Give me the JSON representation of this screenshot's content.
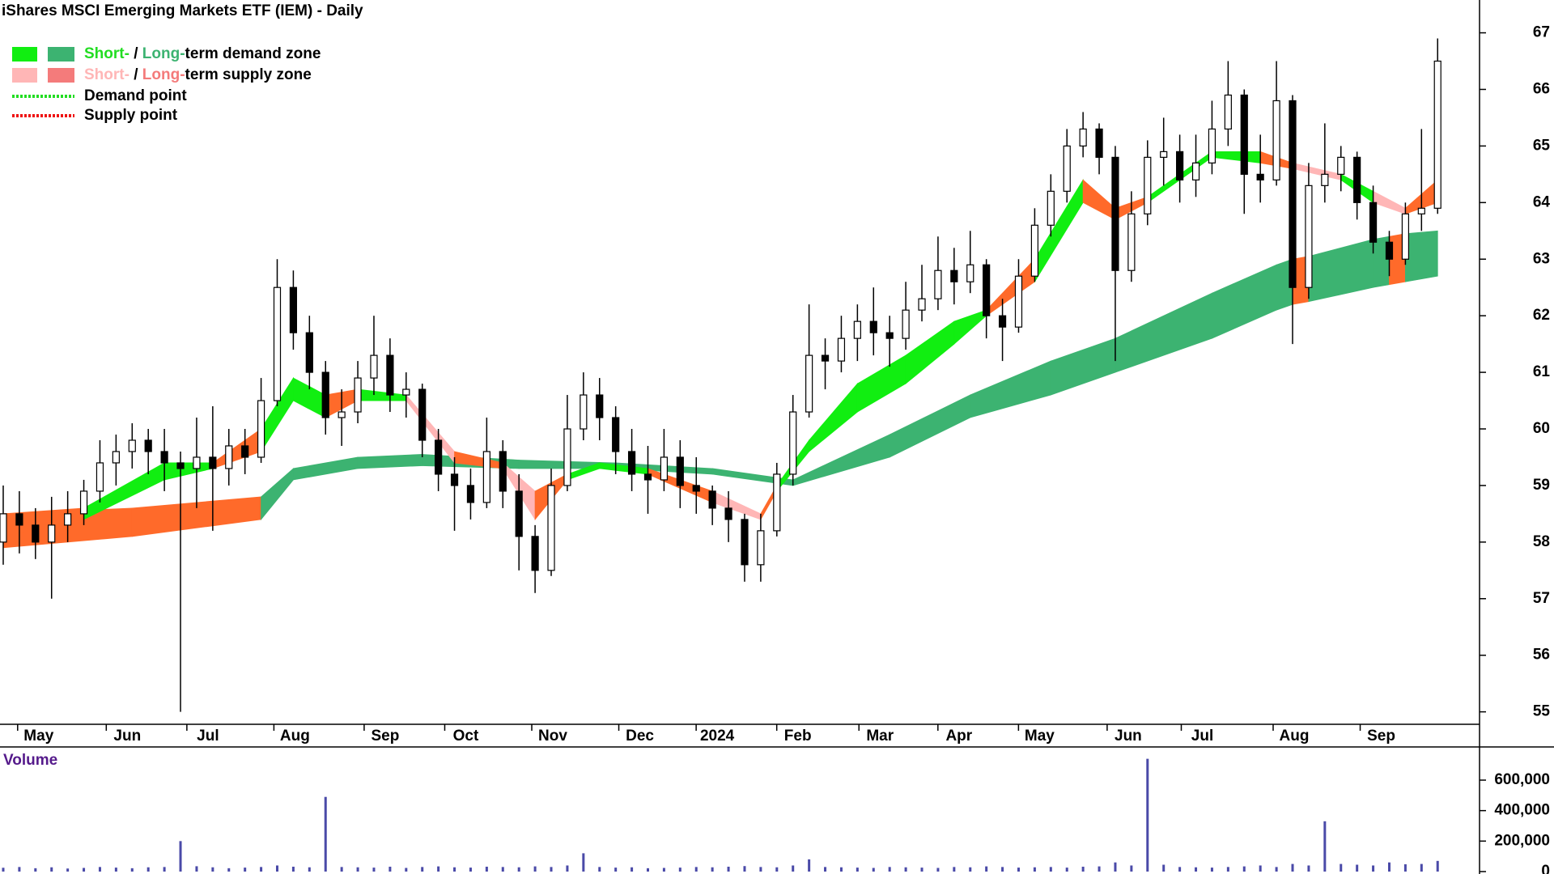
{
  "chart_data": {
    "type": "candlestick",
    "title": "iShares MSCI Emerging Markets ETF (IEM) - Daily",
    "legend": [
      {
        "swatches": [
          "#11ee11",
          "#3cb371"
        ],
        "parts": [
          "Short-",
          " / ",
          "Long-",
          "term demand zone"
        ],
        "part_colors": [
          "#22dd22",
          "#000000",
          "#3cb371",
          "#000000"
        ]
      },
      {
        "swatches": [
          "#ffb6b6",
          "#f47b7b"
        ],
        "parts": [
          "Short-",
          " / ",
          "Long-",
          "term supply zone"
        ],
        "part_colors": [
          "#ffb6b6",
          "#000000",
          "#f47b7b",
          "#000000"
        ]
      },
      {
        "line": "#22dd22",
        "parts": [
          "Demand point"
        ],
        "part_colors": [
          "#000000"
        ]
      },
      {
        "line": "#ee1111",
        "parts": [
          "Supply point"
        ],
        "part_colors": [
          "#000000"
        ]
      }
    ],
    "xlim": [
      -0.2,
      91.6
    ],
    "xticks": [
      {
        "value": 2.2,
        "label": "May"
      },
      {
        "value": 7.7,
        "label": "Jun"
      },
      {
        "value": 12.7,
        "label": "Jul"
      },
      {
        "value": 18.1,
        "label": "Aug"
      },
      {
        "value": 23.7,
        "label": "Sep"
      },
      {
        "value": 28.7,
        "label": "Oct"
      },
      {
        "value": 34.1,
        "label": "Nov"
      },
      {
        "value": 39.5,
        "label": "Dec"
      },
      {
        "value": 44.3,
        "label": "2024"
      },
      {
        "value": 49.3,
        "label": "Feb"
      },
      {
        "value": 54.4,
        "label": "Mar"
      },
      {
        "value": 59.3,
        "label": "Apr"
      },
      {
        "value": 64.3,
        "label": "May"
      },
      {
        "value": 69.8,
        "label": "Jun"
      },
      {
        "value": 74.4,
        "label": "Jul"
      },
      {
        "value": 80.1,
        "label": "Aug"
      },
      {
        "value": 85.5,
        "label": "Sep"
      }
    ],
    "ylim": [
      54.78,
      67.58
    ],
    "yticks": [
      55,
      56,
      57,
      58,
      59,
      60,
      61,
      62,
      63,
      64,
      65,
      66,
      67
    ],
    "candles": [
      [
        58.0,
        59.0,
        57.6,
        58.5
      ],
      [
        58.5,
        58.9,
        57.8,
        58.3
      ],
      [
        58.3,
        58.6,
        57.7,
        58.0
      ],
      [
        58.0,
        58.8,
        57.0,
        58.3
      ],
      [
        58.3,
        58.9,
        58.0,
        58.5
      ],
      [
        58.5,
        59.1,
        58.3,
        58.9
      ],
      [
        58.9,
        59.8,
        58.7,
        59.4
      ],
      [
        59.4,
        59.9,
        59.0,
        59.6
      ],
      [
        59.6,
        60.1,
        59.3,
        59.8
      ],
      [
        59.8,
        60.0,
        59.2,
        59.6
      ],
      [
        59.6,
        60.0,
        58.9,
        59.4
      ],
      [
        59.4,
        59.6,
        55.0,
        59.3
      ],
      [
        59.3,
        60.2,
        58.6,
        59.5
      ],
      [
        59.5,
        60.4,
        58.2,
        59.3
      ],
      [
        59.3,
        60.0,
        59.0,
        59.7
      ],
      [
        59.7,
        60.0,
        59.2,
        59.5
      ],
      [
        59.5,
        60.9,
        59.4,
        60.5
      ],
      [
        60.5,
        63.0,
        60.4,
        62.5
      ],
      [
        62.5,
        62.8,
        61.4,
        61.7
      ],
      [
        61.7,
        62.0,
        60.7,
        61.0
      ],
      [
        61.0,
        61.2,
        59.9,
        60.2
      ],
      [
        60.2,
        60.7,
        59.7,
        60.3
      ],
      [
        60.3,
        61.2,
        60.1,
        60.9
      ],
      [
        60.9,
        62.0,
        60.6,
        61.3
      ],
      [
        61.3,
        61.6,
        60.3,
        60.6
      ],
      [
        60.6,
        61.0,
        60.2,
        60.7
      ],
      [
        60.7,
        60.8,
        59.5,
        59.8
      ],
      [
        59.8,
        60.0,
        58.9,
        59.2
      ],
      [
        59.2,
        59.5,
        58.2,
        59.0
      ],
      [
        59.0,
        59.3,
        58.4,
        58.7
      ],
      [
        58.7,
        60.2,
        58.6,
        59.6
      ],
      [
        59.6,
        59.8,
        58.6,
        58.9
      ],
      [
        58.9,
        59.2,
        57.5,
        58.1
      ],
      [
        58.1,
        58.3,
        57.1,
        57.5
      ],
      [
        57.5,
        59.3,
        57.4,
        59.0
      ],
      [
        59.0,
        60.6,
        58.9,
        60.0
      ],
      [
        60.0,
        61.0,
        59.8,
        60.6
      ],
      [
        60.6,
        60.9,
        59.8,
        60.2
      ],
      [
        60.2,
        60.4,
        59.2,
        59.6
      ],
      [
        59.6,
        60.0,
        58.9,
        59.2
      ],
      [
        59.2,
        59.7,
        58.5,
        59.1
      ],
      [
        59.1,
        60.0,
        58.9,
        59.5
      ],
      [
        59.5,
        59.8,
        58.6,
        59.0
      ],
      [
        59.0,
        59.5,
        58.5,
        58.9
      ],
      [
        58.9,
        59.0,
        58.3,
        58.6
      ],
      [
        58.6,
        58.9,
        58.0,
        58.4
      ],
      [
        58.4,
        58.5,
        57.3,
        57.6
      ],
      [
        57.6,
        58.5,
        57.3,
        58.2
      ],
      [
        58.2,
        59.4,
        58.1,
        59.2
      ],
      [
        59.2,
        60.6,
        59.0,
        60.3
      ],
      [
        60.3,
        62.2,
        60.2,
        61.3
      ],
      [
        61.3,
        61.6,
        60.7,
        61.2
      ],
      [
        61.2,
        62.0,
        61.0,
        61.6
      ],
      [
        61.6,
        62.2,
        61.2,
        61.9
      ],
      [
        61.9,
        62.5,
        61.3,
        61.7
      ],
      [
        61.7,
        62.0,
        61.1,
        61.6
      ],
      [
        61.6,
        62.6,
        61.4,
        62.1
      ],
      [
        62.1,
        62.9,
        61.9,
        62.3
      ],
      [
        62.3,
        63.4,
        62.1,
        62.8
      ],
      [
        62.8,
        63.2,
        62.2,
        62.6
      ],
      [
        62.6,
        63.5,
        62.4,
        62.9
      ],
      [
        62.9,
        63.0,
        61.6,
        62.0
      ],
      [
        62.0,
        62.3,
        61.2,
        61.8
      ],
      [
        61.8,
        63.0,
        61.7,
        62.7
      ],
      [
        62.7,
        63.9,
        62.6,
        63.6
      ],
      [
        63.6,
        64.5,
        63.4,
        64.2
      ],
      [
        64.2,
        65.3,
        64.0,
        65.0
      ],
      [
        65.0,
        65.6,
        64.8,
        65.3
      ],
      [
        65.3,
        65.4,
        64.5,
        64.8
      ],
      [
        64.8,
        65.0,
        61.2,
        62.8
      ],
      [
        62.8,
        64.2,
        62.6,
        63.8
      ],
      [
        63.8,
        65.1,
        63.6,
        64.8
      ],
      [
        64.8,
        65.5,
        64.3,
        64.9
      ],
      [
        64.9,
        65.2,
        64.0,
        64.4
      ],
      [
        64.4,
        65.2,
        64.1,
        64.7
      ],
      [
        64.7,
        65.8,
        64.5,
        65.3
      ],
      [
        65.3,
        66.5,
        65.0,
        65.9
      ],
      [
        65.9,
        66.0,
        63.8,
        64.5
      ],
      [
        64.5,
        65.2,
        64.0,
        64.4
      ],
      [
        64.4,
        66.5,
        64.3,
        65.8
      ],
      [
        65.8,
        65.9,
        61.5,
        62.5
      ],
      [
        62.5,
        64.7,
        62.3,
        64.3
      ],
      [
        64.3,
        65.4,
        64.0,
        64.5
      ],
      [
        64.5,
        65.0,
        64.2,
        64.8
      ],
      [
        64.8,
        64.9,
        63.7,
        64.0
      ],
      [
        64.0,
        64.3,
        63.1,
        63.3
      ],
      [
        63.3,
        63.5,
        62.7,
        63.0
      ],
      [
        63.0,
        64.0,
        62.9,
        63.8
      ],
      [
        63.8,
        65.3,
        63.5,
        63.9
      ],
      [
        63.9,
        66.9,
        63.8,
        66.5
      ]
    ],
    "short_zone": {
      "x": [
        0,
        5,
        10,
        13,
        16,
        18,
        20,
        22,
        25,
        28,
        31,
        33,
        35,
        37,
        40,
        44,
        47,
        48,
        50,
        53,
        56,
        59,
        61,
        64,
        67,
        69,
        71,
        75,
        78,
        80,
        83,
        85,
        87,
        89
      ],
      "upper": [
        58.5,
        58.6,
        59.4,
        59.4,
        60.0,
        60.9,
        60.6,
        60.7,
        60.6,
        59.6,
        59.4,
        58.9,
        59.2,
        59.4,
        59.3,
        58.9,
        58.5,
        59.0,
        59.8,
        60.8,
        61.3,
        61.9,
        62.1,
        63.0,
        64.4,
        63.9,
        64.1,
        64.9,
        64.9,
        64.7,
        64.5,
        64.2,
        63.9,
        64.4
      ],
      "lower": [
        58.1,
        58.4,
        59.1,
        59.3,
        59.6,
        60.5,
        60.2,
        60.5,
        60.5,
        59.4,
        59.3,
        58.4,
        59.1,
        59.3,
        59.2,
        58.7,
        58.4,
        58.9,
        59.6,
        60.3,
        60.8,
        61.5,
        62.0,
        62.6,
        64.0,
        63.7,
        64.0,
        64.8,
        64.7,
        64.6,
        64.4,
        64.0,
        63.8,
        64.0
      ],
      "segment_colors": [
        "#ff6a2a",
        "#11ee11",
        "#11ee11",
        "#ff6a2a",
        "#11ee11",
        "#11ee11",
        "#ff6a2a",
        "#11ee11",
        "#ffb6b6",
        "#ff6a2a",
        "#ffb6b6",
        "#ff6a2a",
        "#11ee11",
        "#11ee11",
        "#ff6a2a",
        "#ffb6b6",
        "#ff6a2a",
        "#11ee11",
        "#11ee11",
        "#11ee11",
        "#11ee11",
        "#11ee11",
        "#ff6a2a",
        "#11ee11",
        "#ff6a2a",
        "#ff6a2a",
        "#11ee11",
        "#11ee11",
        "#ff6a2a",
        "#ffb6b6",
        "#11ee11",
        "#ffb6b6",
        "#ff6a2a"
      ]
    },
    "long_zone": {
      "x": [
        0,
        8,
        16,
        18,
        22,
        26,
        32,
        38,
        44,
        49,
        55,
        60,
        65,
        69,
        75,
        79,
        80,
        81,
        85,
        86,
        87,
        89
      ],
      "upper": [
        58.5,
        58.6,
        58.8,
        59.3,
        59.5,
        59.55,
        59.45,
        59.4,
        59.3,
        59.1,
        59.9,
        60.6,
        61.2,
        61.6,
        62.4,
        62.9,
        63.0,
        63.05,
        63.35,
        63.4,
        63.45,
        63.5
      ],
      "lower": [
        57.9,
        58.1,
        58.4,
        59.1,
        59.3,
        59.35,
        59.3,
        59.3,
        59.2,
        59.0,
        59.5,
        60.2,
        60.6,
        61.0,
        61.6,
        62.1,
        62.2,
        62.25,
        62.5,
        62.55,
        62.6,
        62.7
      ],
      "segment_colors": [
        "#ff6a2a",
        "#ff6a2a",
        "#3cb371",
        "#3cb371",
        "#3cb371",
        "#3cb371",
        "#3cb371",
        "#3cb371",
        "#3cb371",
        "#3cb371",
        "#3cb371",
        "#3cb371",
        "#3cb371",
        "#3cb371",
        "#3cb371",
        "#3cb371",
        "#ff6a2a",
        "#3cb371",
        "#3cb371",
        "#ff6a2a",
        "#3cb371"
      ]
    },
    "volume": {
      "label": "Volume",
      "color": "#4a4aa8",
      "ylim": [
        0,
        800000
      ],
      "yticks": [
        0,
        {
          "value": 200000,
          "label": "200,000"
        },
        {
          "value": 400000,
          "label": "400,000"
        },
        {
          "value": 600000,
          "label": "600,000"
        }
      ],
      "values": [
        25000,
        30000,
        22000,
        28000,
        20000,
        24000,
        30000,
        26000,
        22000,
        28000,
        30000,
        200000,
        35000,
        28000,
        22000,
        26000,
        30000,
        40000,
        32000,
        28000,
        490000,
        30000,
        28000,
        26000,
        32000,
        24000,
        30000,
        34000,
        28000,
        26000,
        32000,
        30000,
        28000,
        34000,
        30000,
        40000,
        120000,
        30000,
        26000,
        28000,
        22000,
        24000,
        26000,
        30000,
        28000,
        32000,
        36000,
        30000,
        28000,
        40000,
        80000,
        30000,
        28000,
        26000,
        24000,
        30000,
        28000,
        26000,
        24000,
        30000,
        28000,
        34000,
        30000,
        26000,
        28000,
        30000,
        26000,
        32000,
        34000,
        60000,
        40000,
        740000,
        45000,
        30000,
        28000,
        26000,
        30000,
        34000,
        40000,
        30000,
        50000,
        40000,
        330000,
        50000,
        45000,
        40000,
        60000,
        48000,
        50000,
        70000
      ]
    }
  }
}
